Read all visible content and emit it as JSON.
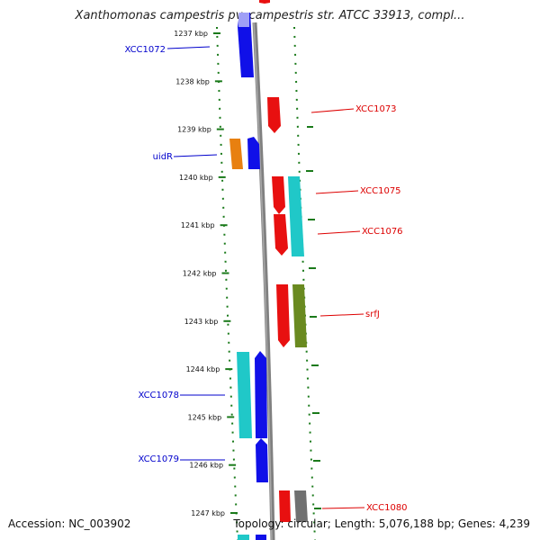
{
  "title": "Xanthomonas campestris pv. campestris str. ATCC 33913, compl...",
  "footer": {
    "accession": "Accession: NC_003902",
    "summary": "Topology: circular; Length: 5,076,188 bp; Genes: 4,239"
  },
  "ticks": [
    "1237 kbp",
    "1238 kbp",
    "1239 kbp",
    "1240 kbp",
    "1241 kbp",
    "1242 kbp",
    "1243 kbp",
    "1244 kbp",
    "1245 kbp",
    "1246 kbp",
    "1247 kbp"
  ],
  "gene_labels_left": [
    "XCC1072",
    "uidR",
    "XCC1078",
    "XCC1079"
  ],
  "gene_labels_right": [
    "XCC1073",
    "XCC1075",
    "XCC1076",
    "srfJ",
    "XCC1080"
  ],
  "colors": {
    "blue": "#1010e8",
    "red": "#e81010",
    "cyan": "#20c8c8",
    "orange": "#e88010",
    "olive": "#6a8a20",
    "gray": "#707070",
    "tick_green": "#1a7a1a",
    "label_blue": "#0000cc",
    "label_red": "#dd0000"
  }
}
